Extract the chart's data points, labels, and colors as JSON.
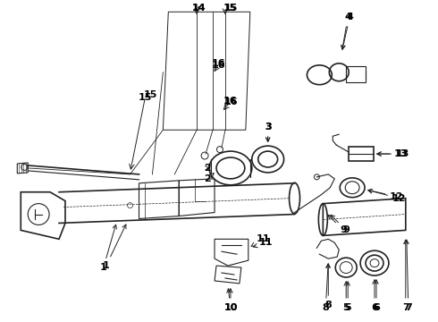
{
  "bg_color": "#ffffff",
  "line_color": "#222222",
  "text_color": "#000000",
  "fig_width": 4.9,
  "fig_height": 3.6,
  "dpi": 100
}
